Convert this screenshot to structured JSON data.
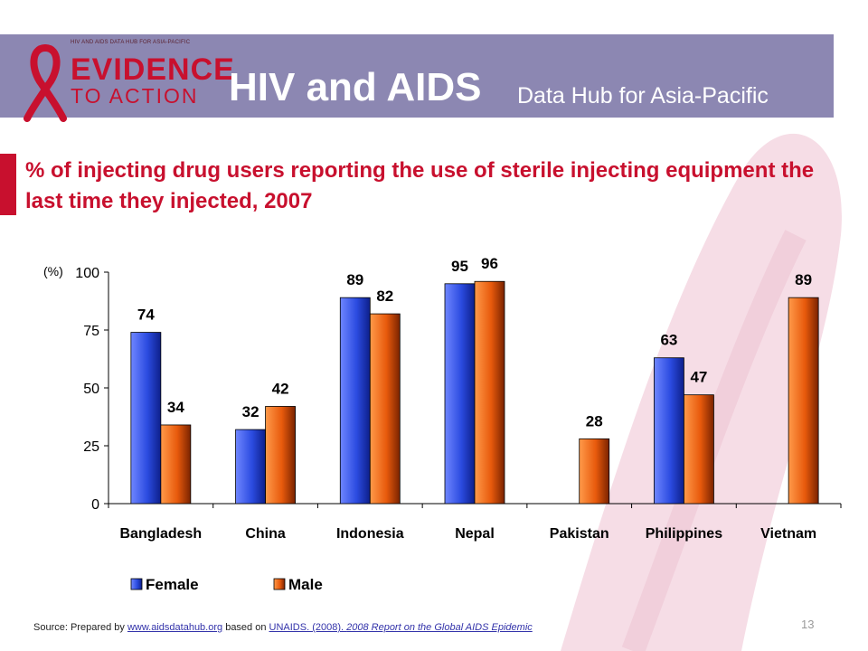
{
  "header": {
    "logo_tiny": "HIV AND AIDS DATA HUB FOR ASIA-PACIFIC",
    "logo_line1": "EVIDENCE",
    "logo_line2": "TO ACTION",
    "title": "HIV and AIDS",
    "subtitle": "Data Hub for Asia-Pacific"
  },
  "slide": {
    "heading": "% of injecting drug users reporting the use of sterile injecting equipment the last time they injected, 2007",
    "page_number": "13"
  },
  "source": {
    "prefix": "Source: Prepared by ",
    "link1": "www.aidsdatahub.org",
    "middle": " based on ",
    "link2": "UNAIDS. (2008). ",
    "link3": "2008 Report on the Global AIDS Epidemic"
  },
  "colors": {
    "banner": "#8c87b2",
    "accent": "#c8102e",
    "female": "#2b4be0",
    "male": "#e85a0c"
  },
  "chart_data": {
    "type": "bar",
    "title": "",
    "ylabel": "(%)",
    "xlabel": "",
    "ylim": [
      0,
      100
    ],
    "yticks": [
      0,
      25,
      50,
      75,
      100
    ],
    "categories": [
      "Bangladesh",
      "China",
      "Indonesia",
      "Nepal",
      "Pakistan",
      "Philippines",
      "Vietnam"
    ],
    "series": [
      {
        "name": "Female",
        "values": [
          74,
          32,
          89,
          95,
          null,
          63,
          null
        ]
      },
      {
        "name": "Male",
        "values": [
          34,
          42,
          82,
          96,
          28,
          47,
          89
        ]
      }
    ],
    "legend_position": "bottom",
    "grid": false
  }
}
